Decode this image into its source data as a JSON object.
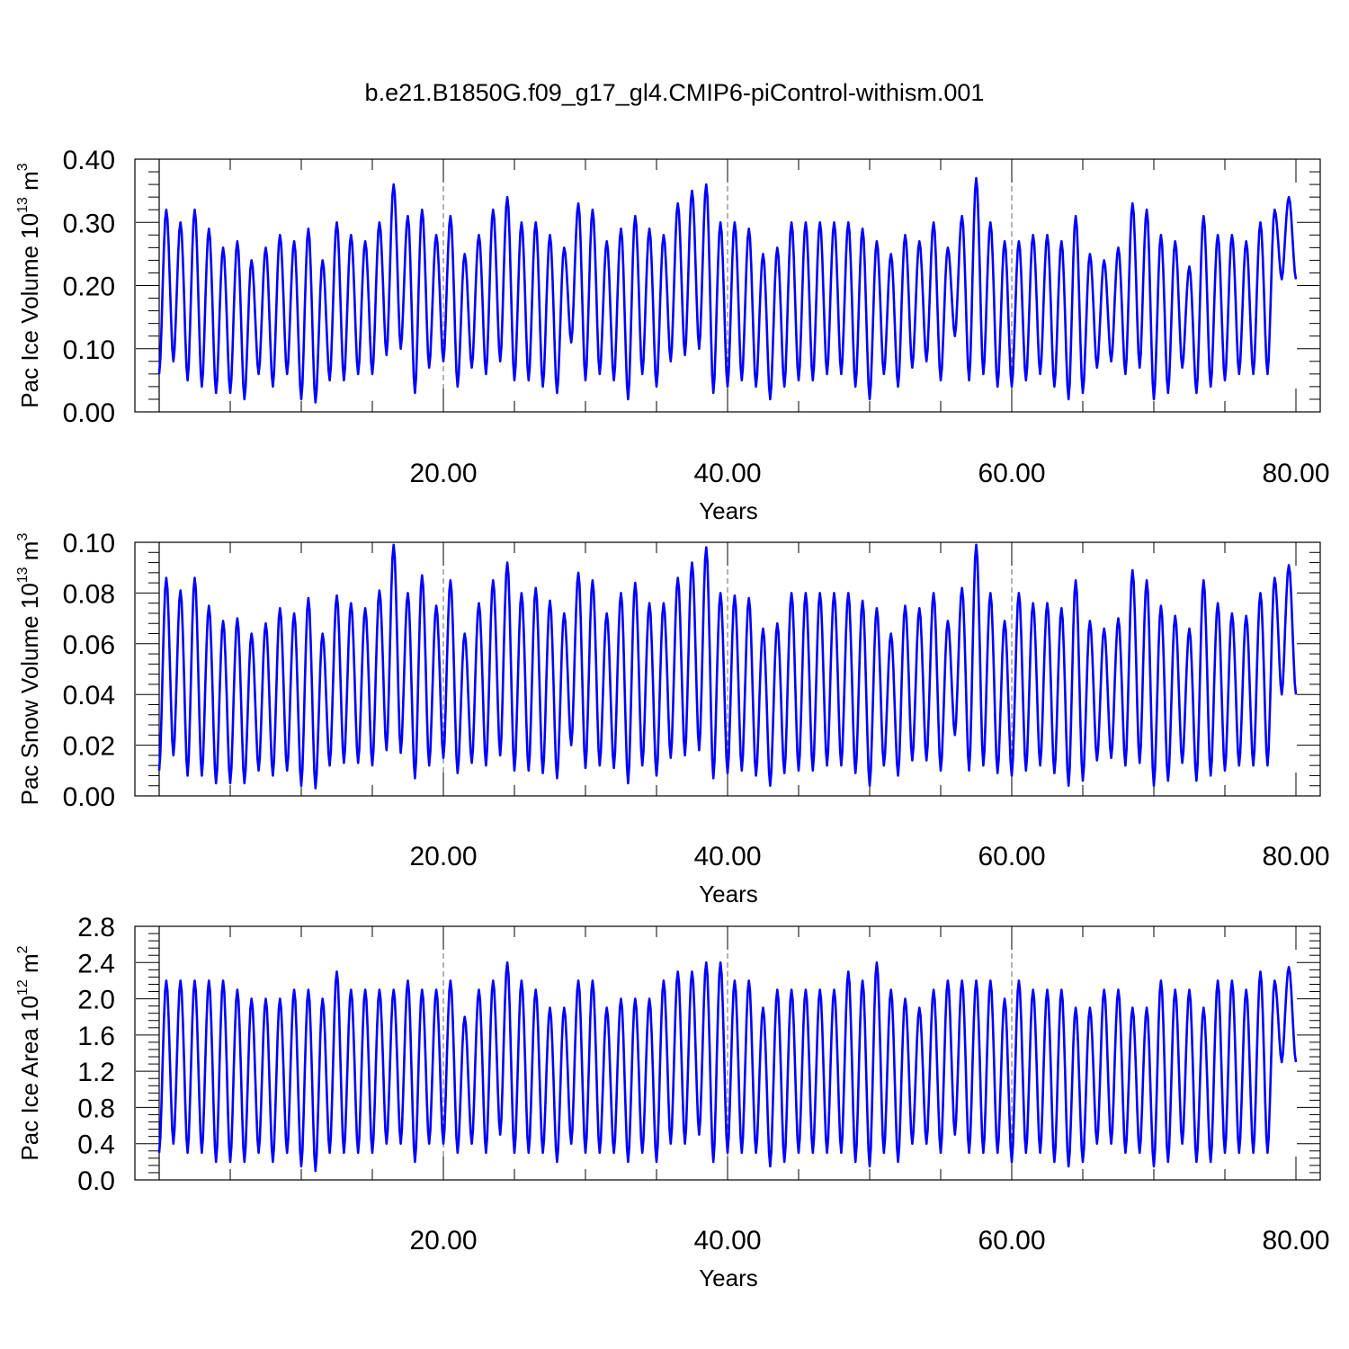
{
  "figure": {
    "title": "b.e21.B1850G.f09_g17_gl4.CMIP6-piControl-withism.001"
  },
  "chart_data": [
    {
      "type": "line",
      "name": "pac-ice-volume",
      "ylabel": "Pac Ice Volume 10",
      "ylabel_exp": "13",
      "ylabel_unit": " m",
      "ylabel_unit_exp": "3",
      "xlabel": "Years",
      "xlim": [
        0,
        80
      ],
      "ylim": [
        0,
        0.4
      ],
      "yticks": [
        "0.00",
        "0.10",
        "0.20",
        "0.30",
        "0.40"
      ],
      "xticks": [
        "20.00",
        "40.00",
        "60.00",
        "80.00"
      ],
      "xtick_values": [
        20,
        40,
        60,
        80
      ],
      "grid_x": [
        20,
        40,
        60
      ],
      "series_color": "#0000ff",
      "annual_max": [
        0.32,
        0.3,
        0.32,
        0.29,
        0.26,
        0.27,
        0.24,
        0.26,
        0.28,
        0.27,
        0.29,
        0.24,
        0.3,
        0.28,
        0.27,
        0.3,
        0.36,
        0.31,
        0.32,
        0.28,
        0.31,
        0.25,
        0.28,
        0.32,
        0.34,
        0.3,
        0.3,
        0.28,
        0.26,
        0.33,
        0.32,
        0.27,
        0.29,
        0.31,
        0.29,
        0.28,
        0.33,
        0.35,
        0.36,
        0.3,
        0.3,
        0.29,
        0.25,
        0.26,
        0.3,
        0.3,
        0.3,
        0.3,
        0.3,
        0.29,
        0.27,
        0.25,
        0.28,
        0.27,
        0.3,
        0.26,
        0.31,
        0.37,
        0.3,
        0.27,
        0.27,
        0.28,
        0.28,
        0.27,
        0.31,
        0.25,
        0.24,
        0.26,
        0.33,
        0.32,
        0.28,
        0.27,
        0.23,
        0.31,
        0.28,
        0.28,
        0.27,
        0.3,
        0.32,
        0.34
      ],
      "annual_min": [
        0.06,
        0.08,
        0.05,
        0.04,
        0.03,
        0.03,
        0.02,
        0.06,
        0.04,
        0.06,
        0.02,
        0.015,
        0.05,
        0.05,
        0.06,
        0.06,
        0.09,
        0.1,
        0.03,
        0.07,
        0.08,
        0.04,
        0.07,
        0.06,
        0.08,
        0.05,
        0.05,
        0.04,
        0.03,
        0.11,
        0.05,
        0.06,
        0.05,
        0.02,
        0.06,
        0.04,
        0.08,
        0.09,
        0.1,
        0.03,
        0.04,
        0.05,
        0.04,
        0.02,
        0.04,
        0.05,
        0.05,
        0.06,
        0.06,
        0.04,
        0.02,
        0.06,
        0.04,
        0.07,
        0.08,
        0.05,
        0.12,
        0.05,
        0.06,
        0.04,
        0.04,
        0.05,
        0.06,
        0.04,
        0.02,
        0.03,
        0.07,
        0.08,
        0.06,
        0.07,
        0.02,
        0.03,
        0.07,
        0.03,
        0.04,
        0.05,
        0.06,
        0.06,
        0.06,
        0.21
      ]
    },
    {
      "type": "line",
      "name": "pac-snow-volume",
      "ylabel": "Pac Snow Volume 10",
      "ylabel_exp": "13",
      "ylabel_unit": " m",
      "ylabel_unit_exp": "3",
      "xlabel": "Years",
      "xlim": [
        0,
        80
      ],
      "ylim": [
        0,
        0.1
      ],
      "yticks": [
        "0.00",
        "0.02",
        "0.04",
        "0.06",
        "0.08",
        "0.10"
      ],
      "xticks": [
        "20.00",
        "40.00",
        "60.00",
        "80.00"
      ],
      "xtick_values": [
        20,
        40,
        60,
        80
      ],
      "grid_x": [
        20,
        40,
        60
      ],
      "series_color": "#0000ff",
      "annual_max": [
        0.086,
        0.081,
        0.086,
        0.075,
        0.069,
        0.07,
        0.064,
        0.068,
        0.074,
        0.072,
        0.078,
        0.064,
        0.079,
        0.076,
        0.074,
        0.081,
        0.099,
        0.08,
        0.087,
        0.075,
        0.085,
        0.064,
        0.076,
        0.085,
        0.092,
        0.08,
        0.082,
        0.077,
        0.072,
        0.088,
        0.085,
        0.072,
        0.08,
        0.084,
        0.076,
        0.076,
        0.086,
        0.092,
        0.098,
        0.08,
        0.079,
        0.078,
        0.066,
        0.068,
        0.08,
        0.08,
        0.08,
        0.08,
        0.08,
        0.077,
        0.074,
        0.064,
        0.075,
        0.074,
        0.08,
        0.069,
        0.082,
        0.099,
        0.08,
        0.069,
        0.08,
        0.076,
        0.076,
        0.074,
        0.085,
        0.069,
        0.066,
        0.07,
        0.089,
        0.085,
        0.075,
        0.071,
        0.066,
        0.085,
        0.076,
        0.072,
        0.071,
        0.08,
        0.086,
        0.091
      ],
      "annual_min": [
        0.01,
        0.016,
        0.008,
        0.008,
        0.005,
        0.005,
        0.005,
        0.01,
        0.008,
        0.01,
        0.004,
        0.003,
        0.012,
        0.013,
        0.013,
        0.012,
        0.018,
        0.017,
        0.007,
        0.012,
        0.015,
        0.009,
        0.013,
        0.012,
        0.016,
        0.01,
        0.01,
        0.009,
        0.007,
        0.02,
        0.011,
        0.012,
        0.011,
        0.005,
        0.012,
        0.008,
        0.015,
        0.016,
        0.018,
        0.007,
        0.009,
        0.01,
        0.008,
        0.004,
        0.009,
        0.01,
        0.01,
        0.012,
        0.012,
        0.009,
        0.004,
        0.012,
        0.008,
        0.014,
        0.014,
        0.01,
        0.024,
        0.01,
        0.012,
        0.009,
        0.008,
        0.01,
        0.012,
        0.009,
        0.004,
        0.006,
        0.014,
        0.015,
        0.012,
        0.013,
        0.004,
        0.006,
        0.013,
        0.006,
        0.008,
        0.01,
        0.012,
        0.012,
        0.012,
        0.04
      ]
    },
    {
      "type": "line",
      "name": "pac-ice-area",
      "ylabel": "Pac Ice Area 10",
      "ylabel_exp": "12",
      "ylabel_unit": " m",
      "ylabel_unit_exp": "2",
      "xlabel": "Years",
      "xlim": [
        0,
        80
      ],
      "ylim": [
        0,
        2.8
      ],
      "yticks": [
        "0.0",
        "0.4",
        "0.8",
        "1.2",
        "1.6",
        "2.0",
        "2.4",
        "2.8"
      ],
      "xticks": [
        "20.00",
        "40.00",
        "60.00",
        "80.00"
      ],
      "xtick_values": [
        20,
        40,
        60,
        80
      ],
      "grid_x": [
        20,
        40,
        60
      ],
      "series_color": "#0000ff",
      "annual_max": [
        2.2,
        2.2,
        2.2,
        2.2,
        2.2,
        2.1,
        2.0,
        2.0,
        2.0,
        2.1,
        2.1,
        2.0,
        2.3,
        2.1,
        2.1,
        2.1,
        2.1,
        2.2,
        2.1,
        2.1,
        2.2,
        1.8,
        2.1,
        2.2,
        2.4,
        2.2,
        2.1,
        1.9,
        1.9,
        2.2,
        2.2,
        1.9,
        2.0,
        2.0,
        2.0,
        2.2,
        2.3,
        2.3,
        2.4,
        2.4,
        2.2,
        2.2,
        1.9,
        2.1,
        2.1,
        2.1,
        2.1,
        2.1,
        2.3,
        2.2,
        2.4,
        2.1,
        2.0,
        1.9,
        2.1,
        2.2,
        2.2,
        2.2,
        2.2,
        2.0,
        2.2,
        2.1,
        2.1,
        2.1,
        1.9,
        1.9,
        2.1,
        2.1,
        1.9,
        1.9,
        2.2,
        2.1,
        2.1,
        1.9,
        2.2,
        2.2,
        2.1,
        2.3,
        2.2,
        2.35
      ],
      "annual_min": [
        0.3,
        0.4,
        0.3,
        0.3,
        0.2,
        0.2,
        0.2,
        0.3,
        0.2,
        0.3,
        0.15,
        0.1,
        0.3,
        0.3,
        0.3,
        0.3,
        0.4,
        0.4,
        0.2,
        0.4,
        0.4,
        0.3,
        0.4,
        0.3,
        0.5,
        0.3,
        0.3,
        0.3,
        0.2,
        0.4,
        0.3,
        0.3,
        0.3,
        0.2,
        0.3,
        0.2,
        0.4,
        0.4,
        0.5,
        0.2,
        0.3,
        0.3,
        0.3,
        0.15,
        0.2,
        0.3,
        0.3,
        0.3,
        0.3,
        0.2,
        0.15,
        0.3,
        0.2,
        0.4,
        0.4,
        0.3,
        0.5,
        0.3,
        0.3,
        0.3,
        0.2,
        0.3,
        0.3,
        0.2,
        0.15,
        0.2,
        0.4,
        0.4,
        0.3,
        0.3,
        0.15,
        0.2,
        0.4,
        0.2,
        0.2,
        0.3,
        0.3,
        0.3,
        0.3,
        1.3
      ]
    }
  ]
}
